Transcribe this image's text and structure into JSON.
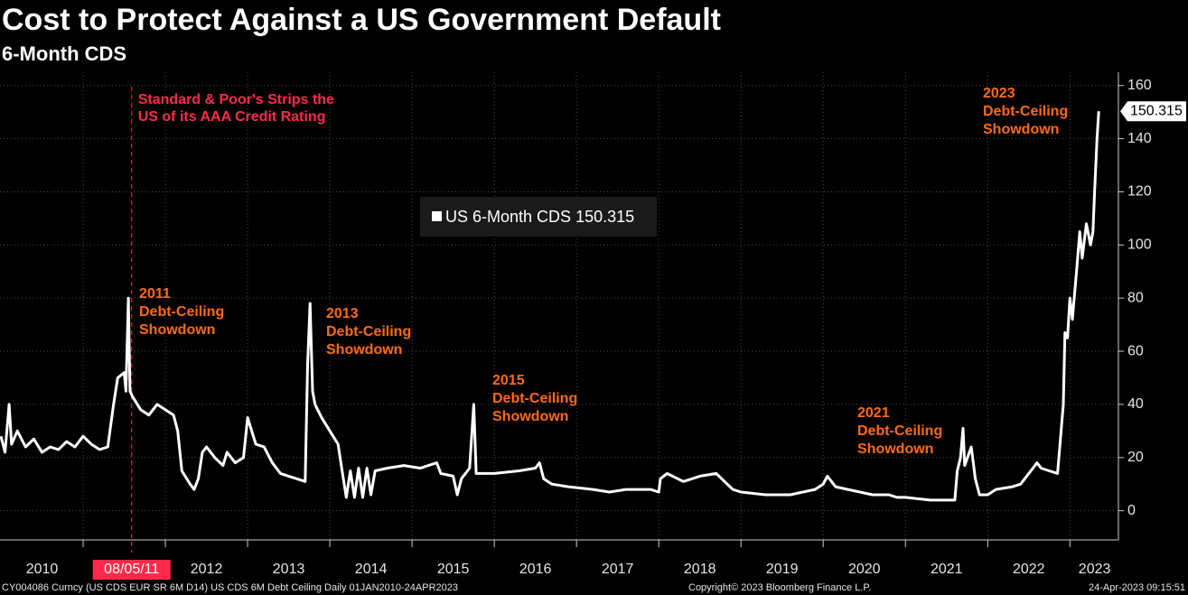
{
  "chart_data": {
    "type": "line",
    "title": "Cost to Protect Against a US Government Default",
    "subtitle": "6-Month CDS",
    "xlim": [
      2010,
      2023.59
    ],
    "ylim": [
      -11,
      165
    ],
    "yticks": [
      0,
      20,
      40,
      60,
      80,
      100,
      120,
      140,
      160
    ],
    "xticks": [
      2011,
      2012,
      2013,
      2014,
      2015,
      2016,
      2017,
      2018,
      2019,
      2020,
      2021,
      2022,
      2023
    ],
    "xtick_labels": [
      {
        "value": 2010.5,
        "label": "2010"
      },
      {
        "value": 2012.5,
        "label": "2012"
      },
      {
        "value": 2013.5,
        "label": "2013"
      },
      {
        "value": 2014.5,
        "label": "2014"
      },
      {
        "value": 2015.5,
        "label": "2015"
      },
      {
        "value": 2016.5,
        "label": "2016"
      },
      {
        "value": 2017.5,
        "label": "2017"
      },
      {
        "value": 2018.5,
        "label": "2018"
      },
      {
        "value": 2019.5,
        "label": "2019"
      },
      {
        "value": 2020.5,
        "label": "2020"
      },
      {
        "value": 2021.5,
        "label": "2021"
      },
      {
        "value": 2022.5,
        "label": "2022"
      },
      {
        "value": 2023.3,
        "label": "2023"
      }
    ],
    "grid": true,
    "series": [
      {
        "name": "US 6-Month CDS",
        "color": "#ffffff",
        "last_value": 150.315,
        "x": [
          2010.0,
          2010.05,
          2010.1,
          2010.13,
          2010.2,
          2010.3,
          2010.4,
          2010.5,
          2010.6,
          2010.7,
          2010.8,
          2010.9,
          2011.0,
          2011.1,
          2011.2,
          2011.3,
          2011.37,
          2011.42,
          2011.5,
          2011.52,
          2011.55,
          2011.57,
          2011.6,
          2011.7,
          2011.8,
          2011.9,
          2012.0,
          2012.1,
          2012.15,
          2012.2,
          2012.3,
          2012.35,
          2012.4,
          2012.45,
          2012.5,
          2012.6,
          2012.7,
          2012.75,
          2012.85,
          2012.95,
          2013.0,
          2013.05,
          2013.1,
          2013.2,
          2013.3,
          2013.4,
          2013.5,
          2013.6,
          2013.7,
          2013.73,
          2013.76,
          2013.79,
          2013.82,
          2013.9,
          2014.0,
          2014.1,
          2014.15,
          2014.2,
          2014.25,
          2014.3,
          2014.35,
          2014.4,
          2014.45,
          2014.5,
          2014.55,
          2014.7,
          2014.9,
          2015.1,
          2015.3,
          2015.35,
          2015.5,
          2015.55,
          2015.6,
          2015.7,
          2015.75,
          2015.78,
          2016.0,
          2016.3,
          2016.5,
          2016.55,
          2016.6,
          2016.7,
          2016.9,
          2017.2,
          2017.4,
          2017.6,
          2017.9,
          2018.0,
          2018.02,
          2018.1,
          2018.3,
          2018.5,
          2018.7,
          2018.8,
          2018.9,
          2019.0,
          2019.3,
          2019.6,
          2019.9,
          2020.0,
          2020.05,
          2020.15,
          2020.3,
          2020.6,
          2020.8,
          2020.9,
          2021.0,
          2021.3,
          2021.6,
          2021.63,
          2021.67,
          2021.7,
          2021.72,
          2021.8,
          2021.85,
          2021.9,
          2022.0,
          2022.1,
          2022.3,
          2022.4,
          2022.5,
          2022.6,
          2022.65,
          2022.75,
          2022.85,
          2022.92,
          2022.94,
          2022.97,
          2023.0,
          2023.03,
          2023.08,
          2023.12,
          2023.15,
          2023.2,
          2023.25,
          2023.28,
          2023.3,
          2023.33,
          2023.35
        ],
        "values": [
          28,
          22,
          40,
          25,
          30,
          24,
          27,
          22,
          24,
          23,
          26,
          24,
          28,
          25,
          23,
          24,
          40,
          50,
          52,
          45,
          80,
          45,
          43,
          38,
          36,
          40,
          38,
          36,
          30,
          15,
          10,
          8,
          12,
          22,
          24,
          20,
          17,
          22,
          18,
          20,
          35,
          30,
          25,
          24,
          18,
          14,
          13,
          12,
          11,
          55,
          78,
          45,
          40,
          35,
          30,
          25,
          15,
          5,
          15,
          5,
          16,
          5,
          16,
          6,
          15,
          16,
          17,
          16,
          18,
          14,
          13,
          6,
          12,
          16,
          40,
          14,
          14,
          15,
          16,
          18,
          12,
          10,
          9,
          8,
          7,
          8,
          8,
          7,
          12,
          14,
          11,
          13,
          14,
          11,
          8,
          7,
          6,
          6,
          8,
          10,
          13,
          9,
          8,
          6,
          6,
          5,
          5,
          4,
          4,
          15,
          20,
          31,
          17,
          24,
          12,
          6,
          6,
          8,
          9,
          10,
          14,
          18,
          16,
          15,
          14,
          40,
          67,
          65,
          80,
          72,
          90,
          105,
          95,
          108,
          100,
          105,
          120,
          140,
          150.315
        ]
      }
    ],
    "event": {
      "x": 2011.59,
      "label": "08/05/11",
      "text_lines": [
        "Standard & Poor's Strips the",
        "US of its AAA Credit Rating"
      ]
    },
    "annotations": [
      {
        "lines": [
          "2011",
          "Debt-Ceiling",
          "Showdown"
        ]
      },
      {
        "lines": [
          "2013",
          "Debt-Ceiling",
          "Showdown"
        ]
      },
      {
        "lines": [
          "2015",
          "Debt-Ceiling",
          "Showdown"
        ]
      },
      {
        "lines": [
          "2021",
          "Debt-Ceiling",
          "Showdown"
        ]
      },
      {
        "lines": [
          "2023",
          "Debt-Ceiling",
          "Showdown"
        ]
      }
    ]
  },
  "footer": {
    "left": "CY004086 Curncy (US CDS EUR SR 6M D14) US CDS 6M Debt Ceiling  Daily 01JAN2010-24APR2023",
    "center": "Copyright© 2023 Bloomberg Finance L.P.",
    "right": "24-Apr-2023 09:15:51"
  }
}
